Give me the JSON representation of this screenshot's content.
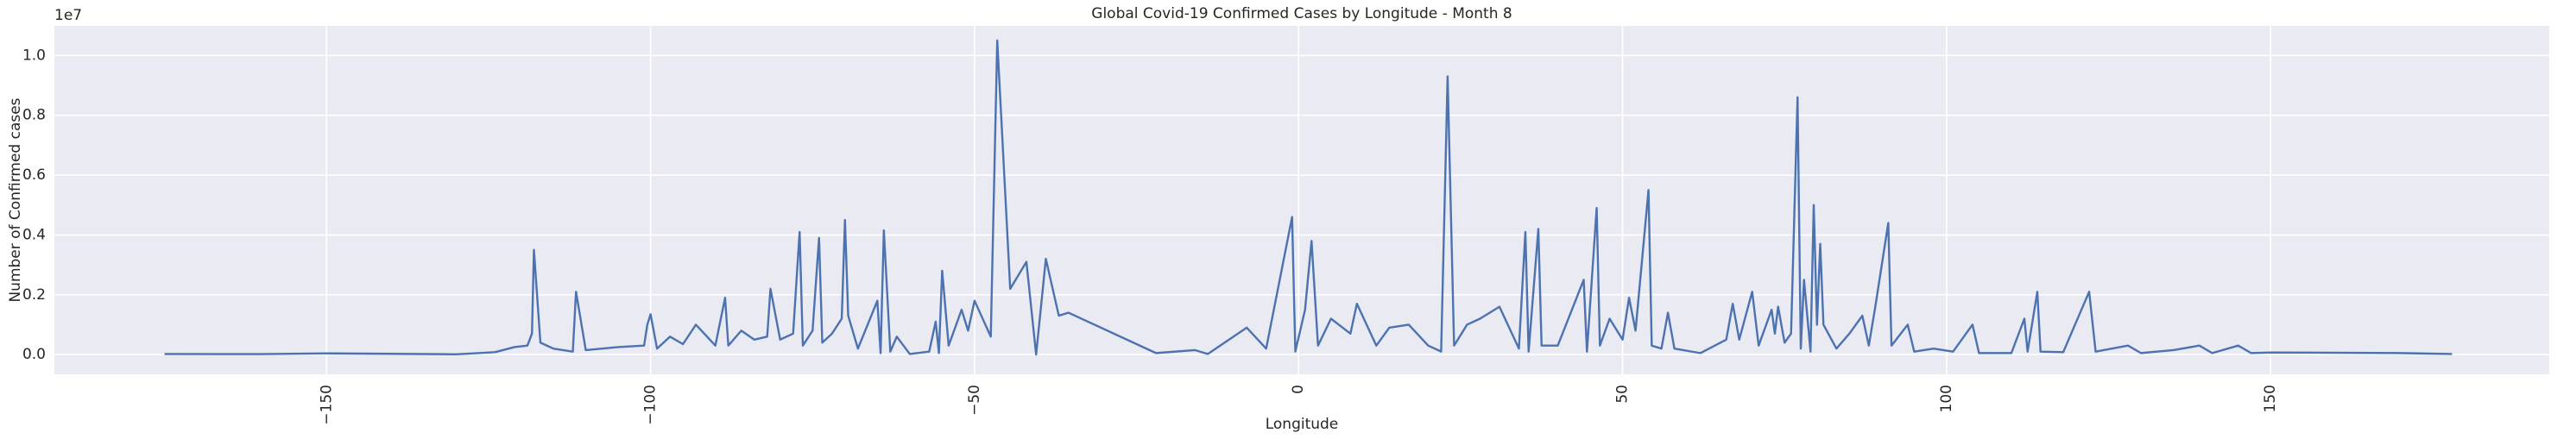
{
  "chart_data": {
    "type": "line",
    "title": "Global Covid-19 Confirmed Cases by Longitude - Month 8",
    "x_label": "Longitude",
    "y_label": "Number of Confirmed cases",
    "y_offset_label": "1e7",
    "color": "#4c72b0",
    "grid": true,
    "xlim": [
      -192,
      193
    ],
    "ylim": [
      -660000,
      10990000
    ],
    "xticks": [
      {
        "value": -150,
        "label": "−150"
      },
      {
        "value": -100,
        "label": "−100"
      },
      {
        "value": -50,
        "label": "−50"
      },
      0,
      50,
      100,
      150
    ],
    "yticks": [
      {
        "value": 0,
        "label": "0.0"
      },
      {
        "value": 2000000,
        "label": "0.2"
      },
      {
        "value": 4000000,
        "label": "0.4"
      },
      {
        "value": 6000000,
        "label": "0.6"
      },
      {
        "value": 8000000,
        "label": "0.8"
      },
      {
        "value": 10000000,
        "label": "1.0"
      }
    ],
    "x": [
      -175,
      -160,
      -150,
      -130,
      -124,
      -121,
      -119,
      -118.3,
      -118,
      -117,
      -115,
      -112,
      -111.5,
      -110,
      -105,
      -101,
      -100.5,
      -100,
      -99,
      -97,
      -95,
      -93,
      -90,
      -88.5,
      -88,
      -86,
      -84,
      -82,
      -81.5,
      -80,
      -78,
      -77,
      -76.5,
      -75,
      -74,
      -73.5,
      -72,
      -70.5,
      -70,
      -69.5,
      -68,
      -65,
      -64.5,
      -64,
      -63,
      -62,
      -60,
      -57,
      -56,
      -55.5,
      -55,
      -54,
      -52,
      -51,
      -50,
      -47.5,
      -46.5,
      -44.5,
      -42,
      -40.5,
      -39,
      -37,
      -35.5,
      -22,
      -16,
      -14,
      -8,
      -5,
      -1,
      -0.5,
      1,
      2,
      3,
      5,
      8,
      9,
      12,
      14,
      17,
      20,
      22,
      23,
      24,
      26,
      28,
      31,
      34,
      35,
      35.5,
      37,
      37.5,
      40,
      44,
      44.5,
      46,
      46.5,
      48,
      50,
      51,
      52,
      54,
      54.5,
      56,
      57,
      58,
      62,
      66,
      67,
      68,
      70,
      71,
      73,
      73.5,
      74,
      75,
      76,
      77,
      77.5,
      78,
      79,
      79.5,
      80,
      80.5,
      81,
      83,
      85,
      87,
      88,
      89,
      91,
      91.5,
      94,
      95,
      98,
      101,
      104,
      105,
      110,
      112,
      112.5,
      114,
      114.5,
      118,
      122,
      123,
      128,
      130,
      135,
      139,
      141,
      145,
      147,
      150,
      170,
      178
    ],
    "values": [
      20000,
      15000,
      40000,
      10000,
      80000,
      250000,
      300000,
      700000,
      3500000,
      400000,
      200000,
      100000,
      2100000,
      150000,
      250000,
      300000,
      1000000,
      1350000,
      200000,
      600000,
      350000,
      1000000,
      300000,
      1900000,
      300000,
      800000,
      500000,
      600000,
      2200000,
      500000,
      700000,
      4100000,
      300000,
      800000,
      3900000,
      400000,
      700000,
      1200000,
      4500000,
      1300000,
      200000,
      1800000,
      50000,
      4150000,
      100000,
      600000,
      20000,
      100000,
      1100000,
      50000,
      2800000,
      300000,
      1500000,
      800000,
      1800000,
      600000,
      10500000,
      2200000,
      3100000,
      0,
      3200000,
      1300000,
      1400000,
      50000,
      150000,
      20000,
      900000,
      200000,
      4600000,
      100000,
      1500000,
      3800000,
      300000,
      1200000,
      700000,
      1700000,
      300000,
      900000,
      1000000,
      300000,
      100000,
      9300000,
      300000,
      1000000,
      1200000,
      1600000,
      200000,
      4100000,
      100000,
      4200000,
      300000,
      300000,
      2500000,
      100000,
      4900000,
      300000,
      1200000,
      500000,
      1900000,
      800000,
      5500000,
      300000,
      200000,
      1400000,
      200000,
      50000,
      500000,
      1700000,
      500000,
      2100000,
      300000,
      1500000,
      700000,
      1600000,
      400000,
      700000,
      8600000,
      200000,
      2500000,
      100000,
      5000000,
      1000000,
      3700000,
      1000000,
      200000,
      700000,
      1300000,
      300000,
      1600000,
      4400000,
      300000,
      1000000,
      100000,
      200000,
      100000,
      1000000,
      50000,
      50000,
      1200000,
      100000,
      2100000,
      100000,
      80000,
      2100000,
      100000,
      300000,
      50000,
      150000,
      300000,
      50000,
      300000,
      50000,
      70000,
      50000,
      20000
    ]
  }
}
